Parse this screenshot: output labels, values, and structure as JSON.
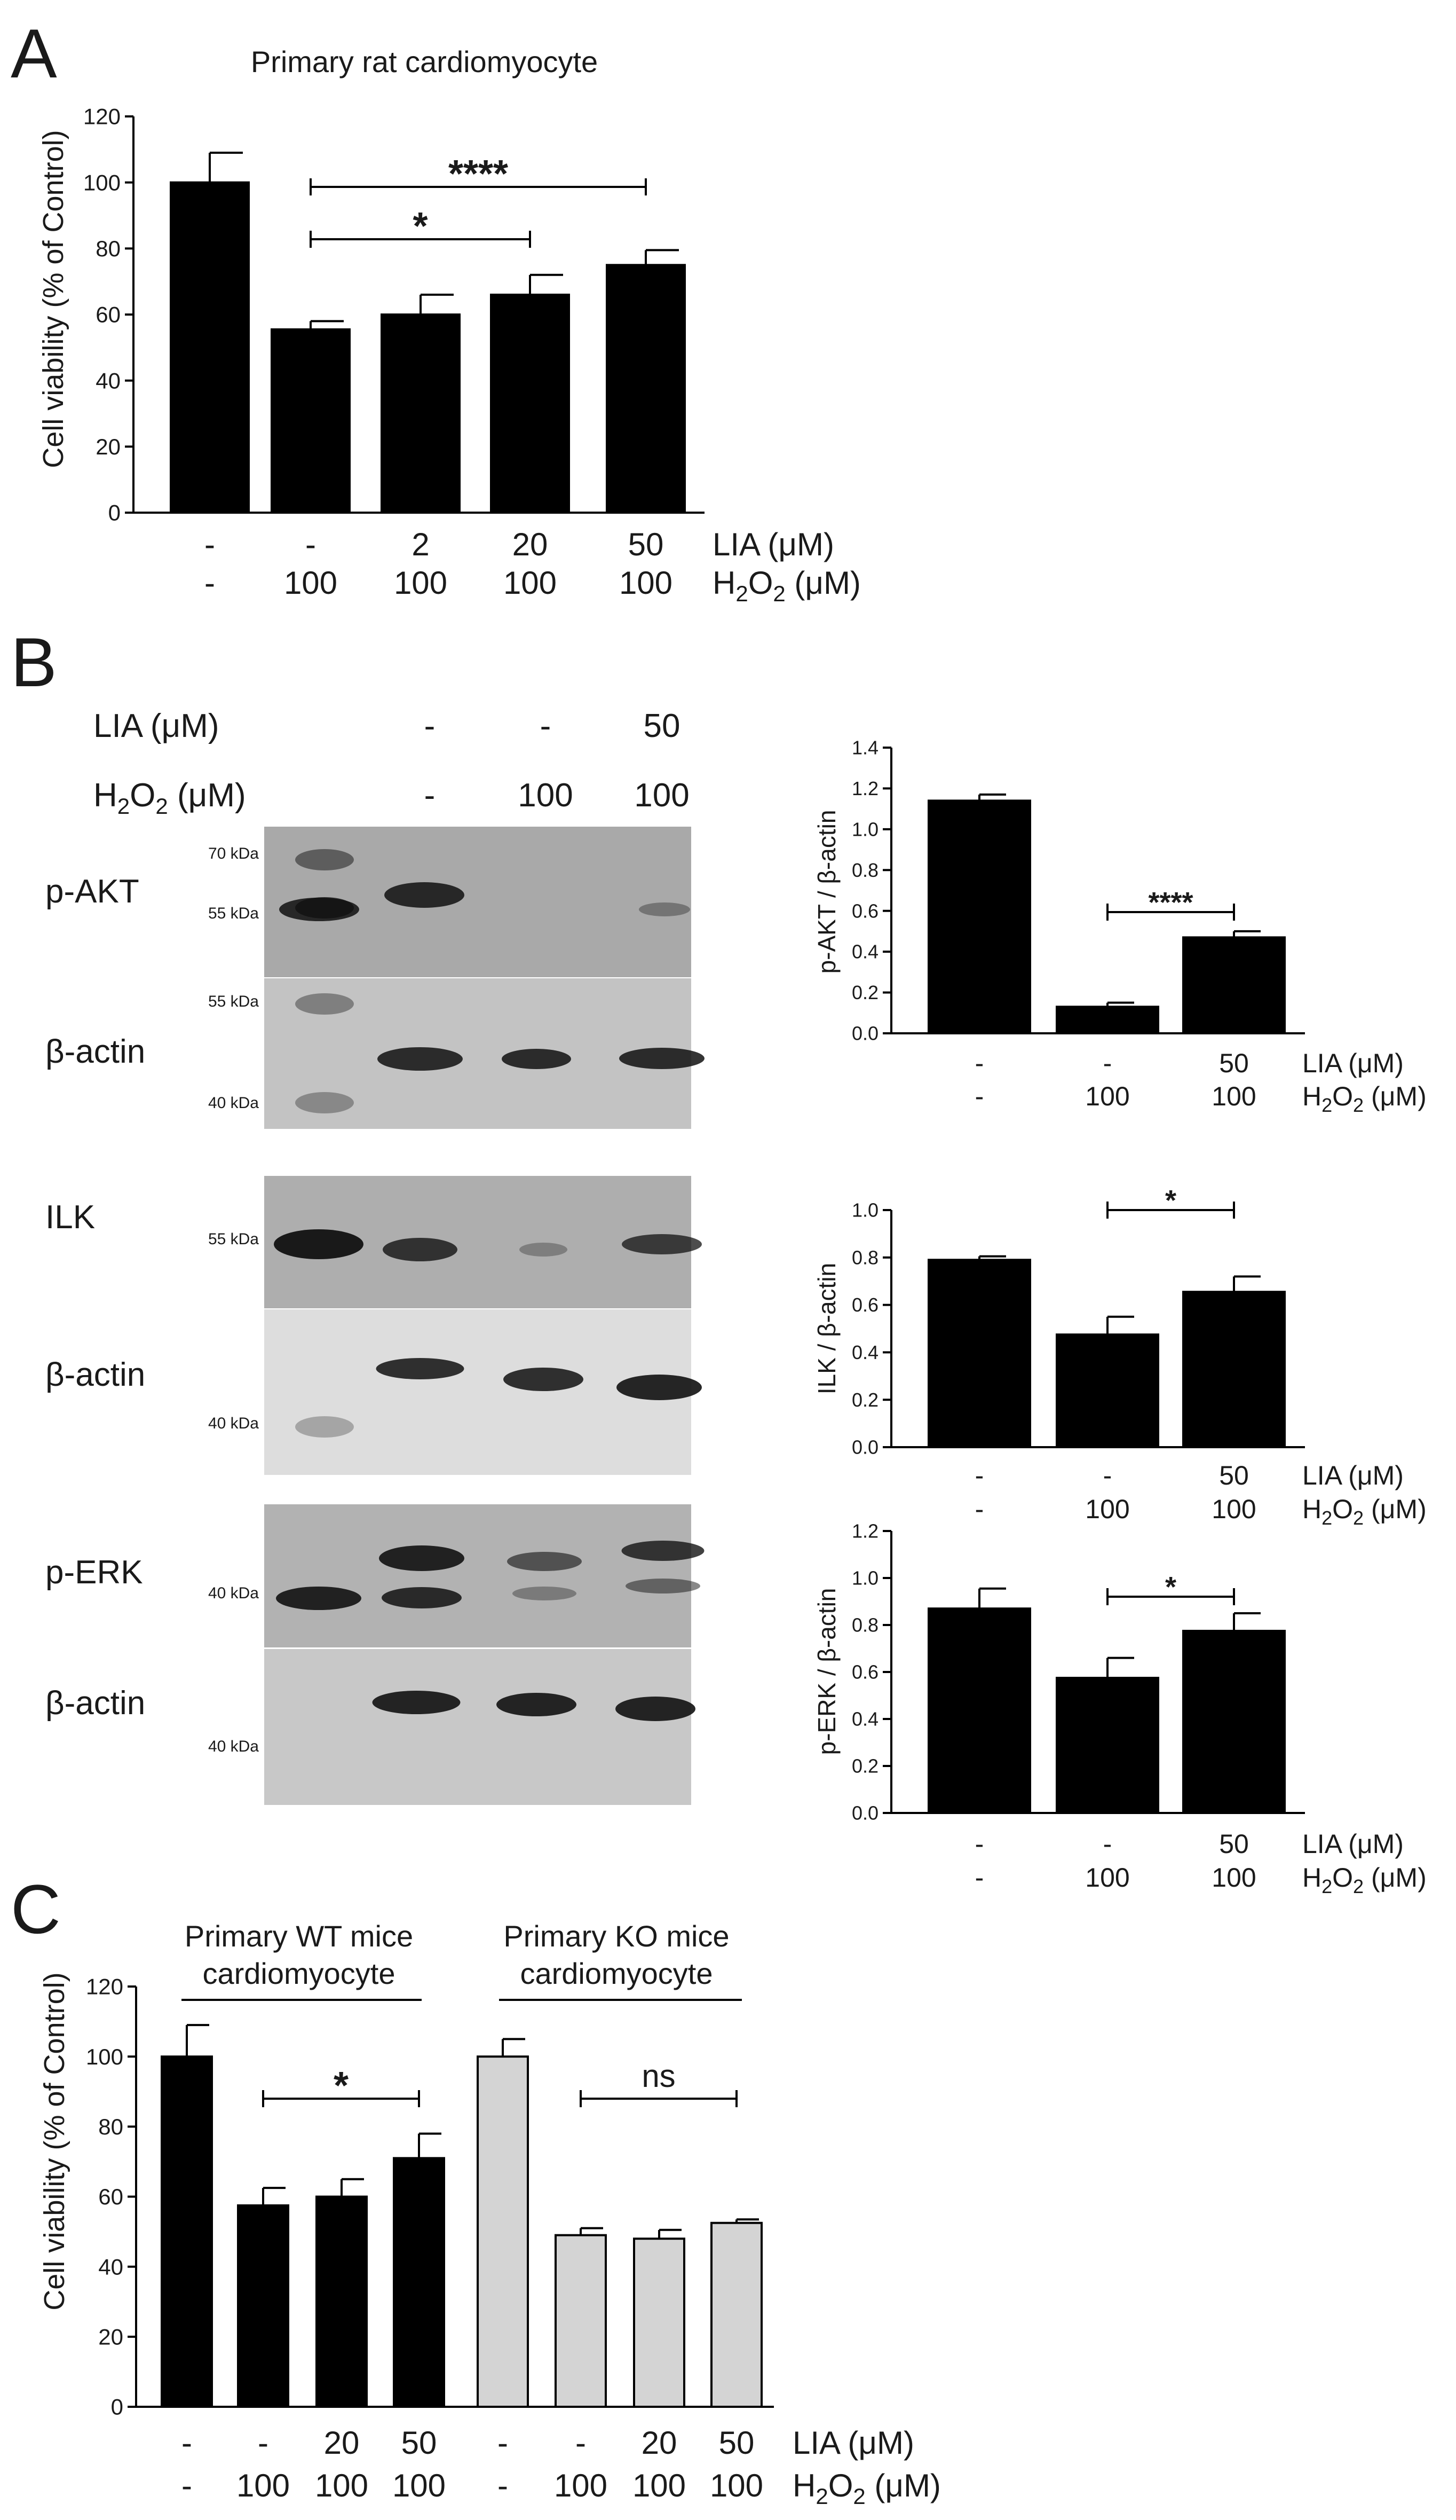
{
  "panels": {
    "a": {
      "letter": "A"
    },
    "b": {
      "letter": "B"
    },
    "c": {
      "letter": "C"
    }
  },
  "chart_data": [
    {
      "id": "A",
      "type": "bar",
      "title": "Primary rat cardiomyocyte",
      "ylabel": "Cell viability (% of Control)",
      "xlabel": "",
      "ylim": [
        0,
        120
      ],
      "yticks": [
        0,
        20,
        40,
        60,
        80,
        100,
        120
      ],
      "grid": false,
      "series": [
        {
          "values": [
            100,
            55.5,
            60,
            66,
            75
          ],
          "errors": [
            9,
            2.5,
            6,
            6,
            4.5
          ],
          "color": "#000000"
        }
      ],
      "conditions": [
        {
          "label": "LIA (μM)",
          "values": [
            "-",
            "-",
            "2",
            "20",
            "50"
          ]
        },
        {
          "label": "H2O2 (μM)",
          "values": [
            "-",
            "100",
            "100",
            "100",
            "100"
          ]
        }
      ],
      "significance": [
        {
          "from": 1,
          "to": 4,
          "label": "****"
        },
        {
          "from": 1,
          "to": 3,
          "label": "*"
        }
      ]
    },
    {
      "id": "B1",
      "type": "bar",
      "ylabel": "p-AKT / β-actin",
      "ylim": [
        0,
        1.4
      ],
      "yticks": [
        "0.0",
        "0.2",
        "0.4",
        "0.6",
        "0.8",
        "1.0",
        "1.2",
        "1.4"
      ],
      "series": [
        {
          "values": [
            1.14,
            0.13,
            0.47
          ],
          "errors": [
            0.03,
            0.02,
            0.03
          ],
          "color": "#000000"
        }
      ],
      "conditions": [
        {
          "label": "LIA (μM)",
          "values": [
            "-",
            "-",
            "50"
          ]
        },
        {
          "label": "H2O2 (μM)",
          "values": [
            "-",
            "100",
            "100"
          ]
        }
      ],
      "significance": [
        {
          "from": 1,
          "to": 2,
          "label": "****"
        }
      ]
    },
    {
      "id": "B2",
      "type": "bar",
      "ylabel": "ILK / β-actin",
      "ylim": [
        0,
        1.0
      ],
      "yticks": [
        "0.0",
        "0.2",
        "0.4",
        "0.6",
        "0.8",
        "1.0"
      ],
      "series": [
        {
          "values": [
            0.79,
            0.475,
            0.655
          ],
          "errors": [
            0.015,
            0.075,
            0.065
          ],
          "color": "#000000"
        }
      ],
      "conditions": [
        {
          "label": "LIA (μM)",
          "values": [
            "-",
            "-",
            "50"
          ]
        },
        {
          "label": "H2O2 (μM)",
          "values": [
            "-",
            "100",
            "100"
          ]
        }
      ],
      "significance": [
        {
          "from": 1,
          "to": 2,
          "label": "*"
        }
      ]
    },
    {
      "id": "B3",
      "type": "bar",
      "ylabel": "p-ERK / β-actin",
      "ylim": [
        0,
        1.2
      ],
      "yticks": [
        "0.0",
        "0.2",
        "0.4",
        "0.6",
        "0.8",
        "1.0",
        "1.2"
      ],
      "series": [
        {
          "values": [
            0.87,
            0.575,
            0.775
          ],
          "errors": [
            0.085,
            0.085,
            0.075
          ],
          "color": "#000000"
        }
      ],
      "conditions": [
        {
          "label": "LIA (μM)",
          "values": [
            "-",
            "-",
            "50"
          ]
        },
        {
          "label": "H2O2 (μM)",
          "values": [
            "-",
            "100",
            "100"
          ]
        }
      ],
      "significance": [
        {
          "from": 1,
          "to": 2,
          "label": "*"
        }
      ]
    },
    {
      "id": "C",
      "type": "bar",
      "ylabel": "Cell viability (% of Control)",
      "ylim": [
        0,
        120
      ],
      "yticks": [
        0,
        20,
        40,
        60,
        80,
        100,
        120
      ],
      "groups": [
        {
          "name": "Primary WT mice cardiomyocyte",
          "lines": [
            "Primary WT mice",
            "cardiomyocyte"
          ],
          "color": "#000000",
          "values": [
            100,
            57.5,
            60,
            71
          ],
          "errors": [
            9,
            5,
            5,
            7
          ]
        },
        {
          "name": "Primary KO mice cardiomyocyte",
          "lines": [
            "Primary KO mice",
            "cardiomyocyte"
          ],
          "color": "#d4d4d4",
          "values": [
            100,
            49,
            48,
            52.5
          ],
          "errors": [
            5,
            2,
            2.5,
            1
          ]
        }
      ],
      "conditions": [
        {
          "label": "LIA (μM)",
          "values": [
            "-",
            "-",
            "20",
            "50",
            "-",
            "-",
            "20",
            "50"
          ]
        },
        {
          "label": "H2O2 (μM)",
          "values": [
            "-",
            "100",
            "100",
            "100",
            "-",
            "100",
            "100",
            "100"
          ]
        }
      ],
      "significance": [
        {
          "from": 1,
          "to": 3,
          "label": "*"
        },
        {
          "from": 5,
          "to": 7,
          "label": "ns"
        }
      ]
    }
  ],
  "western_blot": {
    "conditions": [
      {
        "label": "LIA (μM)",
        "values": [
          "-",
          "-",
          "50"
        ]
      },
      {
        "label": "H2O2 (μM)",
        "values": [
          "-",
          "100",
          "100"
        ]
      }
    ],
    "blots": [
      {
        "label": "p-AKT",
        "markers": [
          "70 kDa",
          "55 kDa"
        ]
      },
      {
        "label": "β-actin",
        "markers": [
          "55 kDa",
          "40 kDa"
        ]
      },
      {
        "label": "ILK",
        "markers": [
          "55 kDa"
        ]
      },
      {
        "label": "β-actin",
        "markers": [
          "40 kDa"
        ]
      },
      {
        "label": "p-ERK",
        "markers": [
          "40 kDa"
        ]
      },
      {
        "label": "β-actin",
        "markers": [
          "40 kDa"
        ]
      }
    ]
  }
}
